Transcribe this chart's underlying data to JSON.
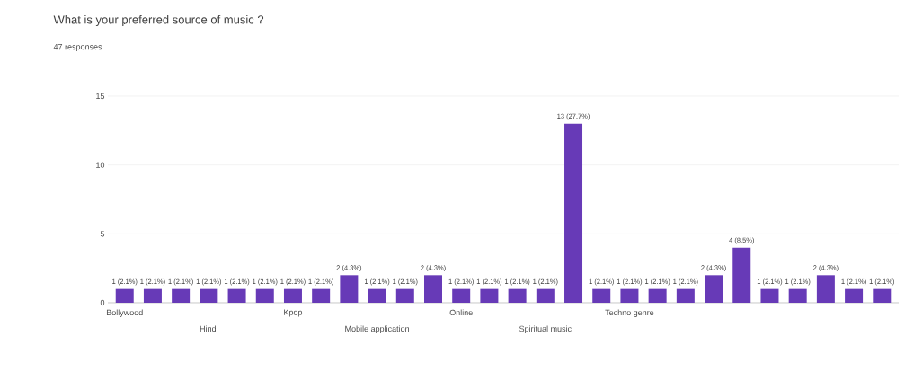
{
  "chart_data": {
    "type": "bar",
    "title": "What is your preferred source of music ?",
    "subtitle": "47 responses",
    "categories": [
      "Bollywood",
      null,
      null,
      "Hindi",
      null,
      null,
      "Kpop",
      null,
      null,
      "Mobile application",
      null,
      null,
      "Online",
      null,
      null,
      "Spiritual music",
      null,
      null,
      "Techno genre",
      null,
      null,
      null,
      null,
      null,
      null,
      null,
      null,
      null
    ],
    "values": [
      1,
      1,
      1,
      1,
      1,
      1,
      1,
      1,
      2,
      1,
      1,
      2,
      1,
      1,
      1,
      1,
      13,
      1,
      1,
      1,
      1,
      2,
      4,
      1,
      1,
      2,
      1,
      1
    ],
    "value_labels": [
      "1 (2.1%)",
      "1 (2.1%)",
      "1 (2.1%)",
      "1 (2.1%)",
      "1 (2.1%)",
      "1 (2.1%)",
      "1 (2.1%)",
      "1 (2.1%)",
      "2 (4.3%)",
      "1 (2.1%)",
      "1 (2.1%)",
      "2 (4.3%)",
      "1 (2.1%)",
      "1 (2.1%)",
      "1 (2.1%)",
      "1 (2.1%)",
      "13 (27.7%)",
      "1 (2.1%)",
      "1 (2.1%)",
      "1 (2.1%)",
      "1 (2.1%)",
      "2 (4.3%)",
      "4 (8.5%)",
      "1 (2.1%)",
      "1 (2.1%)",
      "2 (4.3%)",
      "1 (2.1%)",
      "1 (2.1%)"
    ],
    "color": "#673ab7",
    "ylim": [
      0,
      15
    ],
    "yticks": [
      0,
      5,
      10,
      15
    ],
    "grid": "y"
  }
}
